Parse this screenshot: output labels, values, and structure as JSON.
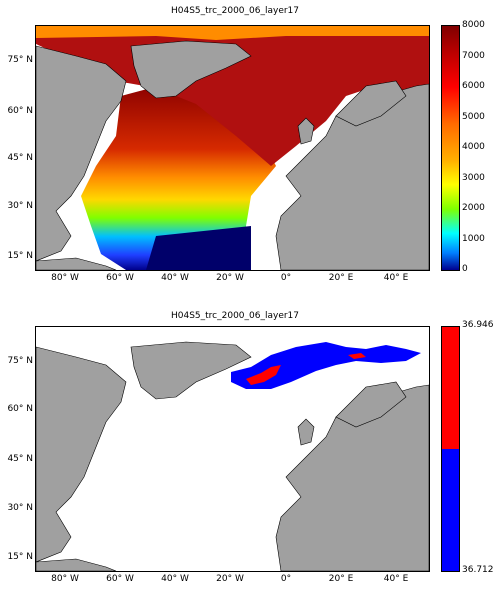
{
  "maps": [
    {
      "title": "H04S5_trc_2000_06_layer17",
      "colorbar": {
        "type": "continuous",
        "ticks": [
          "8000",
          "7000",
          "6000",
          "5000",
          "4000",
          "3000",
          "2000",
          "1000",
          "0"
        ]
      }
    },
    {
      "title": "H04S5_trc_2000_06_layer17",
      "colorbar": {
        "type": "two-class",
        "top_label": "36.946",
        "bottom_label": "36.712",
        "colors": [
          "#ff0000",
          "#0000ff"
        ]
      }
    }
  ],
  "axes": {
    "lat_ticks": [
      "75° N",
      "60° N",
      "45° N",
      "30° N",
      "15° N"
    ],
    "lon_ticks": [
      "80° W",
      "60° W",
      "40° W",
      "20° W",
      "0°",
      "20° E",
      "40° E"
    ]
  },
  "colors": {
    "land": "#a0a0a0",
    "missing": "#ffffff"
  }
}
